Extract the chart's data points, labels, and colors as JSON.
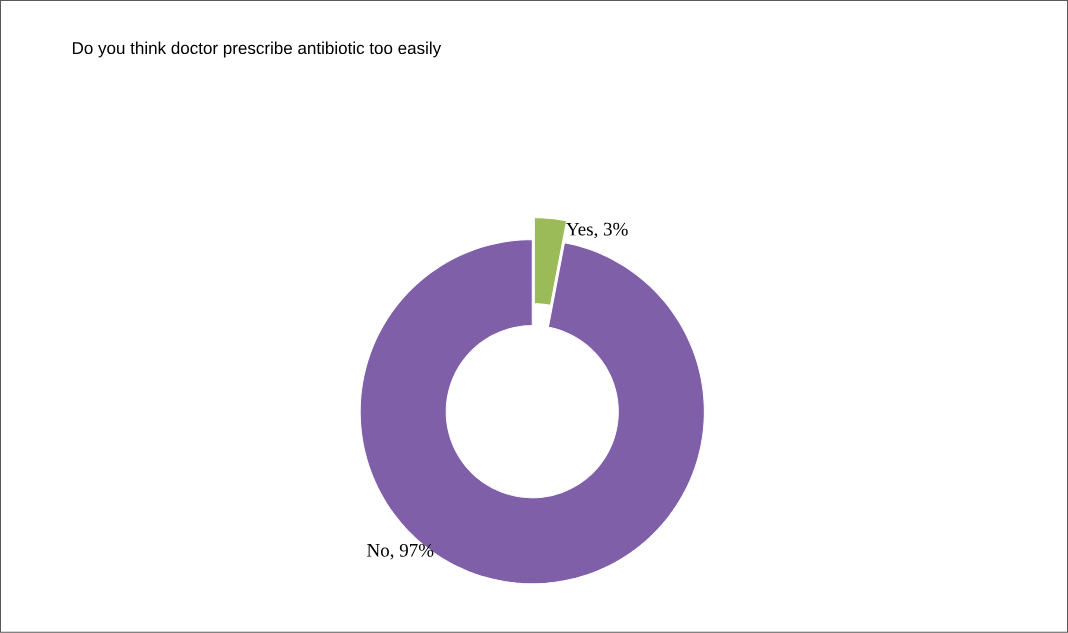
{
  "chart_data": {
    "type": "donut",
    "title": "Do you think doctor prescribe antibiotic too easily",
    "categories": [
      "Yes, 3%",
      "No, 97%"
    ],
    "values": [
      3,
      97
    ],
    "colors": [
      "#9bbb59",
      "#7f60a8"
    ]
  }
}
